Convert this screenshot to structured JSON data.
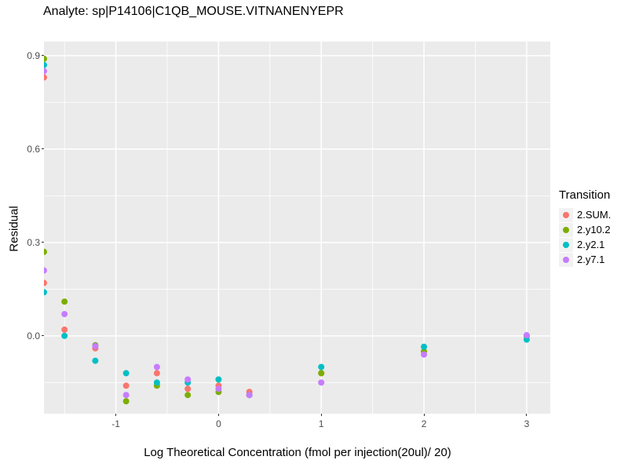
{
  "chart_data": {
    "type": "scatter",
    "title": "Analyte: sp|P14106|C1QB_MOUSE.VITNANENYEPR",
    "xlabel": "Log Theoretical Concentration (fmol per injection(20ul)/ 20)",
    "ylabel": "Residual",
    "legend_title": "Transition",
    "legend_position": "right",
    "grid": true,
    "panel_background": "#EBEBEB",
    "gridline_color": "#FFFFFF",
    "tick_label_color": "#4D4D4D",
    "xlim": [
      -1.7,
      3.23
    ],
    "ylim": [
      -0.25,
      0.945
    ],
    "x_ticks": [
      {
        "value": -1,
        "label": "-1"
      },
      {
        "value": 0,
        "label": "0"
      },
      {
        "value": 1,
        "label": "1"
      },
      {
        "value": 2,
        "label": "2"
      },
      {
        "value": 3,
        "label": "3"
      }
    ],
    "y_ticks": [
      {
        "value": 0.0,
        "label": "0.0"
      },
      {
        "value": 0.3,
        "label": "0.3"
      },
      {
        "value": 0.6,
        "label": "0.6"
      },
      {
        "value": 0.9,
        "label": "0.9"
      }
    ],
    "x_minor": [
      -1.5,
      -0.5,
      0.5,
      1.5,
      2.5
    ],
    "y_minor": [
      -0.15,
      0.15,
      0.45,
      0.75
    ],
    "point_radius_px": 4,
    "series": [
      {
        "name": "2.SUM.",
        "color": "#F8766D",
        "points": [
          [
            -1.7,
            0.83
          ],
          [
            -1.7,
            0.17
          ],
          [
            -1.5,
            0.02
          ],
          [
            -1.2,
            -0.04
          ],
          [
            -0.9,
            -0.16
          ],
          [
            -0.6,
            -0.12
          ],
          [
            -0.3,
            -0.17
          ],
          [
            0,
            -0.16
          ],
          [
            0.3,
            -0.18
          ],
          [
            1,
            -0.12
          ],
          [
            2,
            -0.05
          ],
          [
            3,
            0.0
          ]
        ]
      },
      {
        "name": "2.y10.2",
        "color": "#7CAE00",
        "points": [
          [
            -1.7,
            0.89
          ],
          [
            -1.7,
            0.27
          ],
          [
            -1.5,
            0.11
          ],
          [
            -1.2,
            -0.03
          ],
          [
            -0.9,
            -0.21
          ],
          [
            -0.6,
            -0.16
          ],
          [
            -0.3,
            -0.19
          ],
          [
            0,
            -0.18
          ],
          [
            0.3,
            -0.19
          ],
          [
            1,
            -0.12
          ],
          [
            2,
            -0.05
          ],
          [
            3,
            0.0
          ]
        ]
      },
      {
        "name": "2.y2.1",
        "color": "#00BFC4",
        "points": [
          [
            -1.7,
            0.87
          ],
          [
            -1.7,
            0.14
          ],
          [
            -1.5,
            0.0
          ],
          [
            -1.2,
            -0.08
          ],
          [
            -0.9,
            -0.12
          ],
          [
            -0.6,
            -0.15
          ],
          [
            -0.3,
            -0.15
          ],
          [
            0,
            -0.14
          ],
          [
            0.3,
            -0.19
          ],
          [
            1,
            -0.1
          ],
          [
            2,
            -0.035
          ],
          [
            3,
            -0.012
          ]
        ]
      },
      {
        "name": "2.y7.1",
        "color": "#C77CFF",
        "points": [
          [
            -1.7,
            0.85
          ],
          [
            -1.7,
            0.21
          ],
          [
            -1.5,
            0.07
          ],
          [
            -1.2,
            -0.033
          ],
          [
            -0.9,
            -0.19
          ],
          [
            -0.6,
            -0.1
          ],
          [
            -0.3,
            -0.14
          ],
          [
            0,
            -0.17
          ],
          [
            0.3,
            -0.19
          ],
          [
            1,
            -0.15
          ],
          [
            2,
            -0.06
          ],
          [
            3,
            0.002
          ]
        ]
      }
    ]
  }
}
